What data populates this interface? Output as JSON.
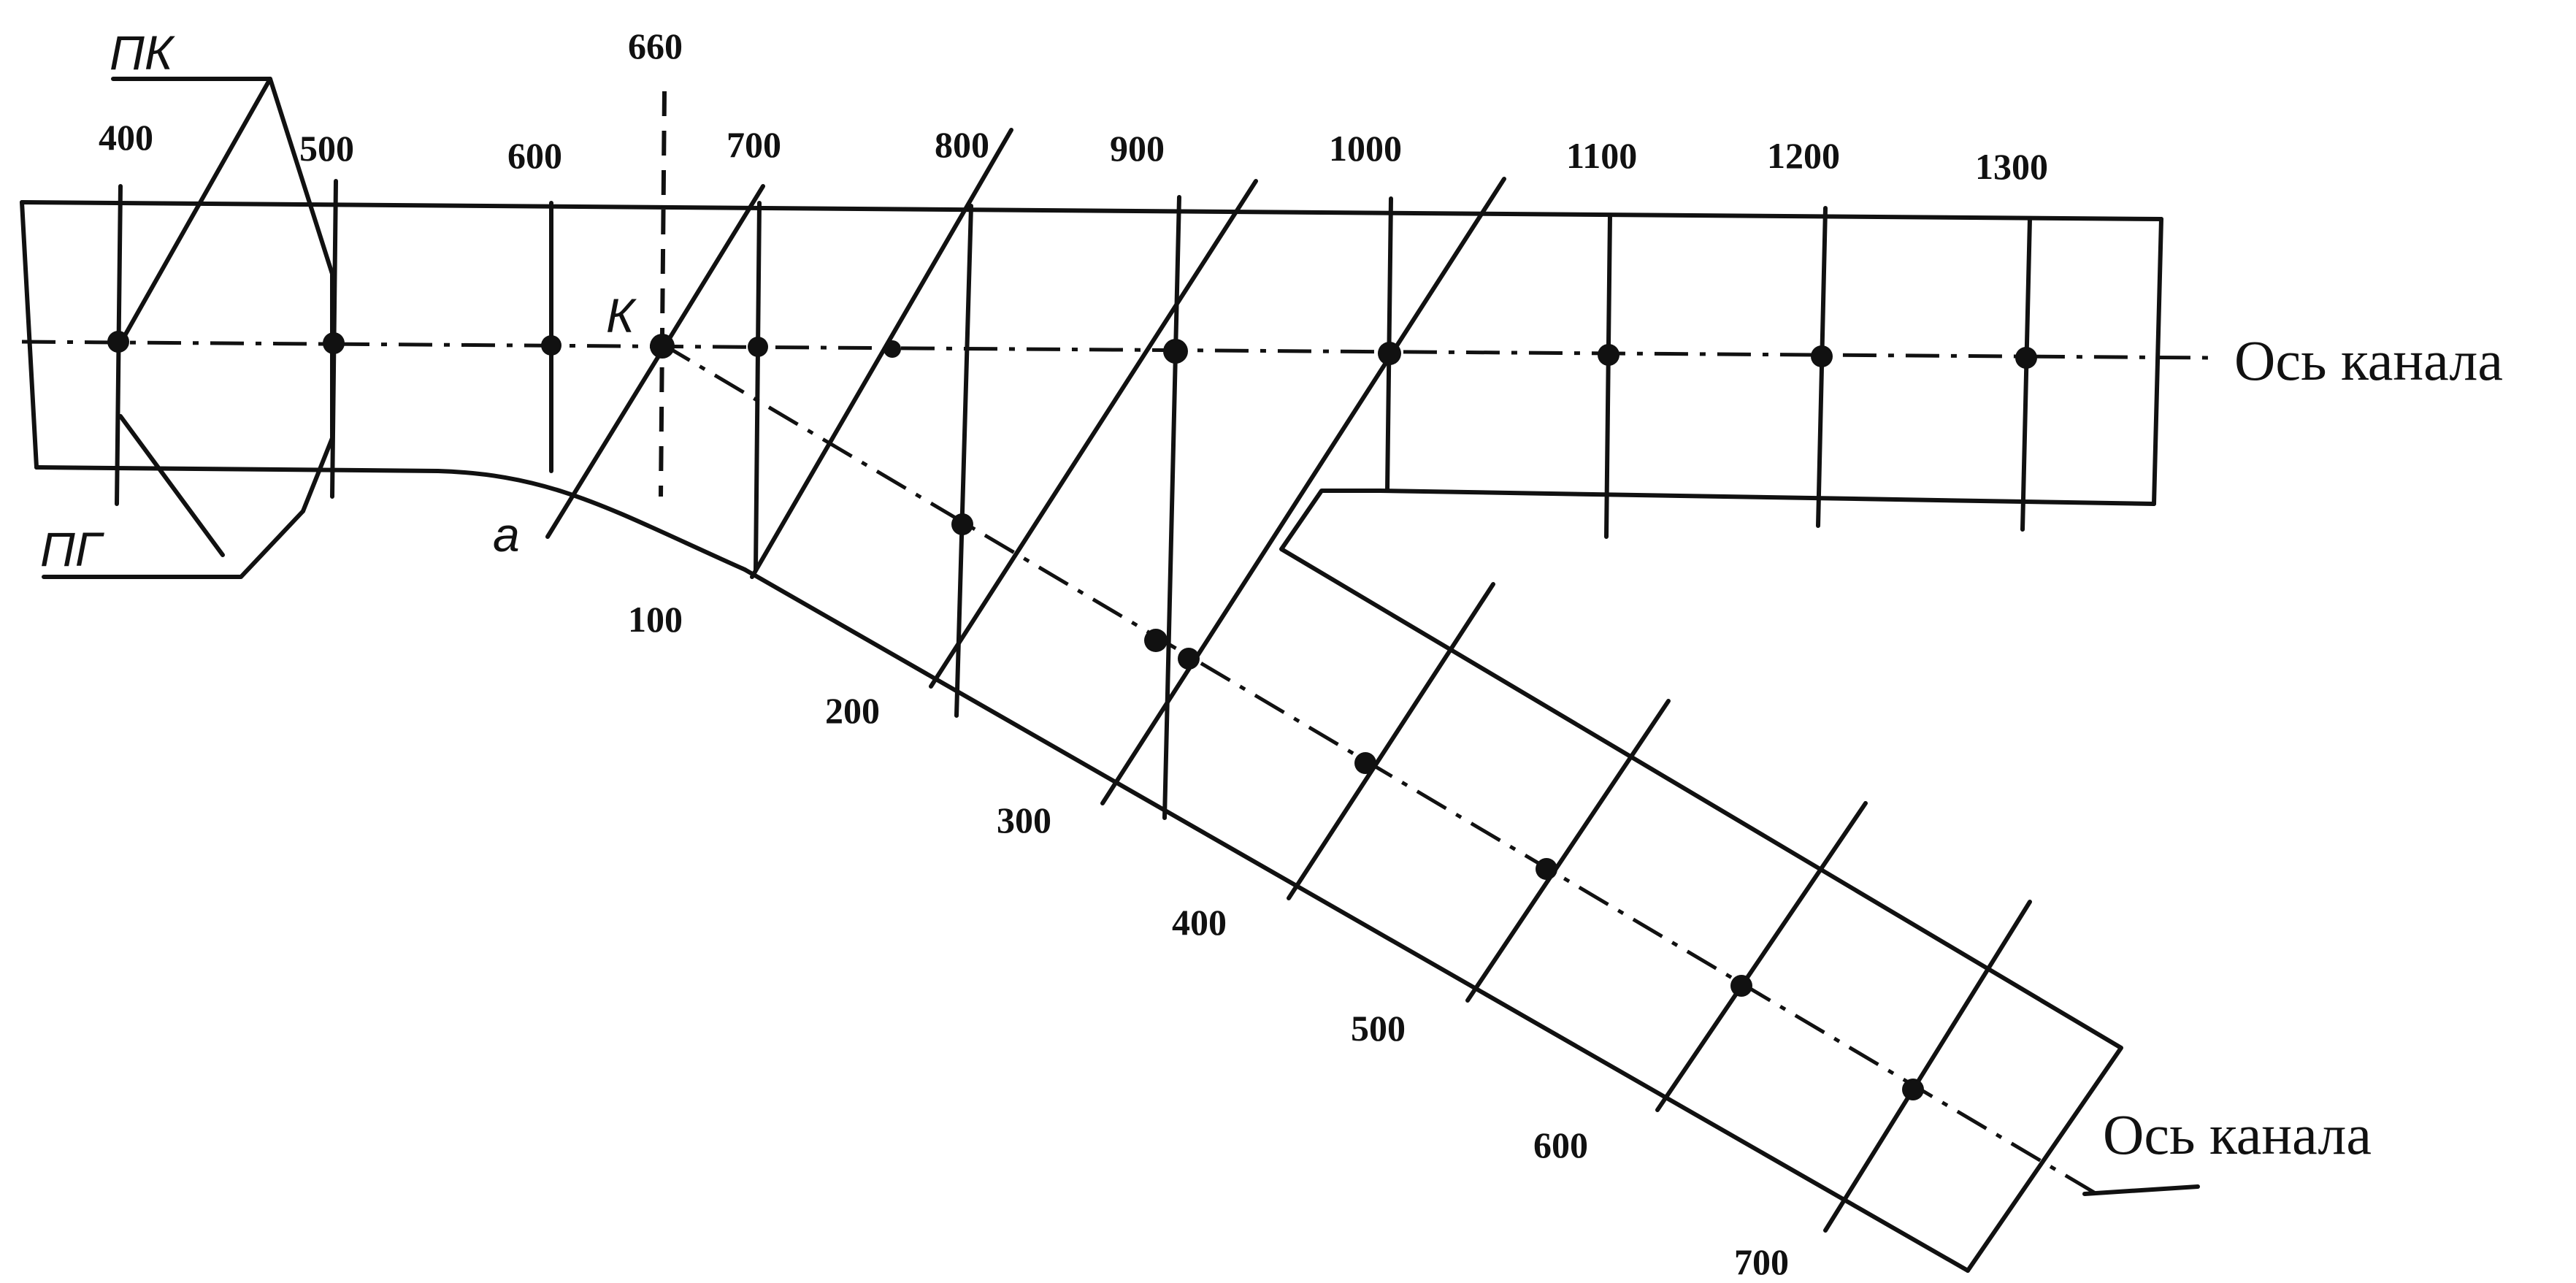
{
  "main_channel": {
    "stations": [
      "400",
      "500",
      "600",
      "660",
      "700",
      "800",
      "900",
      "1000",
      "1100",
      "1200",
      "1300"
    ],
    "axis_label": "Ось канала"
  },
  "branch_channel": {
    "stations": [
      "100",
      "200",
      "300",
      "400",
      "500",
      "600",
      "700"
    ],
    "axis_label": "Ось канала"
  },
  "labels": {
    "pk": "ПК",
    "pg": "ПГ",
    "k": "К",
    "a": "a"
  }
}
